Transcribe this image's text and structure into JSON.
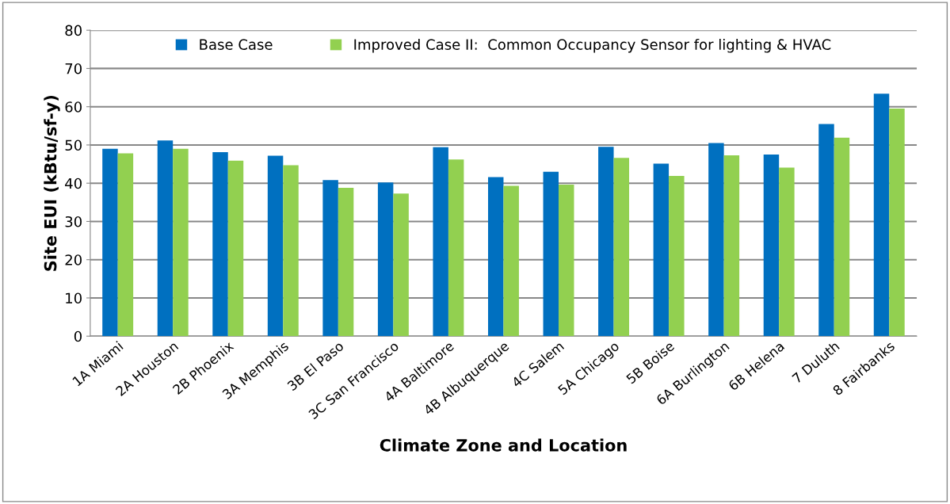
{
  "chart_data": {
    "type": "bar",
    "xlabel": "Climate Zone and Location",
    "ylabel": "Site EUI (kBtu/sf-y)",
    "categories": [
      "1A Miami",
      "2A Houston",
      "2B Phoenix",
      "3A Memphis",
      "3B El Paso",
      "3C San Francisco",
      "4A Baltimore",
      "4B Albuquerque",
      "4C Salem",
      "5A Chicago",
      "5B Boise",
      "6A Burlington",
      "6B Helena",
      "7 Duluth",
      "8 Fairbanks"
    ],
    "series": [
      {
        "name": "Base Case",
        "color": "#0070c0",
        "values": [
          49.0,
          51.2,
          48.1,
          47.2,
          40.8,
          40.2,
          49.4,
          41.6,
          43.0,
          49.5,
          45.1,
          50.5,
          47.5,
          55.5,
          63.4
        ]
      },
      {
        "name": "Improved Case II:  Common Occupancy Sensor for lighting & HVAC",
        "color": "#92d050",
        "values": [
          47.8,
          49.0,
          45.9,
          44.7,
          38.8,
          37.3,
          46.2,
          39.3,
          39.6,
          46.6,
          41.9,
          47.3,
          44.1,
          51.9,
          59.5
        ]
      }
    ],
    "ylim": [
      0,
      80
    ],
    "yticks": [
      0,
      10,
      20,
      30,
      40,
      50,
      60,
      70,
      80
    ],
    "grid": "y",
    "legend": "top"
  }
}
